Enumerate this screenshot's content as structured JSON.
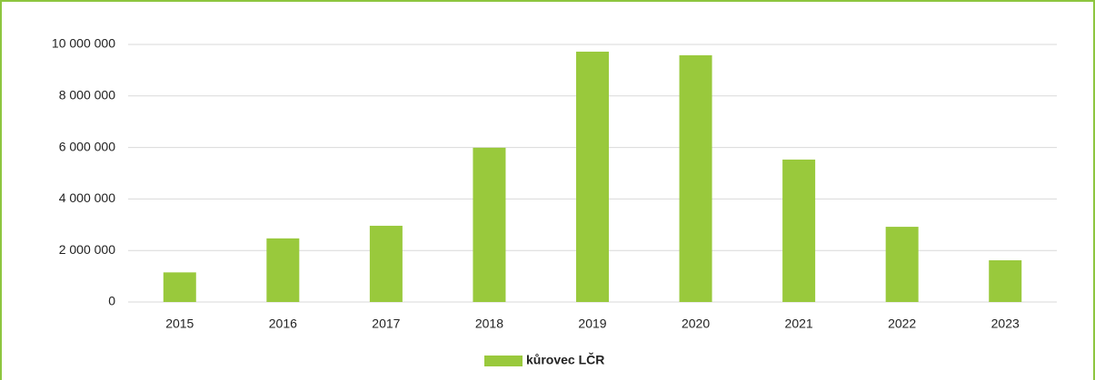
{
  "chart_data": {
    "type": "bar",
    "categories": [
      "2015",
      "2016",
      "2017",
      "2018",
      "2019",
      "2020",
      "2021",
      "2022",
      "2023"
    ],
    "series": [
      {
        "name": "kůrovec LČR",
        "color": "#99c93c",
        "values": [
          1150000,
          2470000,
          2960000,
          5990000,
          9720000,
          9580000,
          5530000,
          2920000,
          1620000
        ]
      }
    ],
    "ylim": [
      0,
      10000000
    ],
    "yticks": [
      0,
      {
        "value": 2000000,
        "label": "2 000 000"
      },
      {
        "value": 4000000,
        "label": "4 000 000"
      },
      {
        "value": 6000000,
        "label": "6 000 000"
      },
      {
        "value": 8000000,
        "label": "8 000 000"
      },
      {
        "value": 10000000,
        "label": "10 000 000"
      }
    ],
    "grid": true,
    "legend": "bottom"
  }
}
